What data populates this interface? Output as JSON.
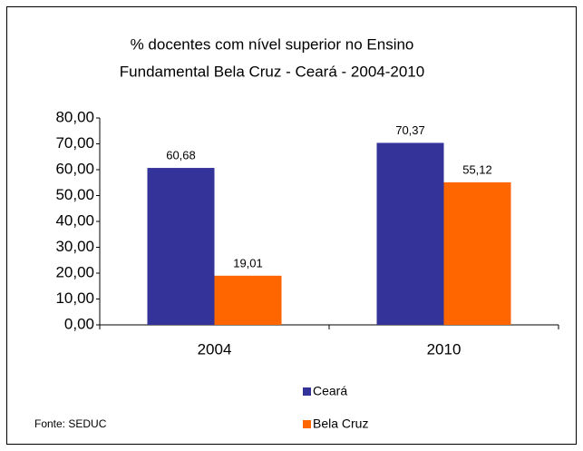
{
  "chart_data": {
    "type": "bar",
    "title": [
      "% docentes com nível superior no Ensino",
      "Fundamental Bela Cruz - Ceará - 2004-2010"
    ],
    "categories": [
      "2004",
      "2010"
    ],
    "series": [
      {
        "name": "Ceará",
        "color": "#333399",
        "values": [
          60.68,
          70.37
        ],
        "value_labels": [
          "60,68",
          "70,37"
        ]
      },
      {
        "name": "Bela Cruz",
        "color": "#ff6600",
        "values": [
          19.01,
          55.12
        ],
        "value_labels": [
          "19,01",
          "55,12"
        ]
      }
    ],
    "ylim": [
      0,
      80
    ],
    "yticks": [
      {
        "value": 0,
        "label": "0,00"
      },
      {
        "value": 10,
        "label": "10,00"
      },
      {
        "value": 20,
        "label": "20,00"
      },
      {
        "value": 30,
        "label": "30,00"
      },
      {
        "value": 40,
        "label": "40,00"
      },
      {
        "value": 50,
        "label": "50,00"
      },
      {
        "value": 60,
        "label": "60,00"
      },
      {
        "value": 70,
        "label": "70,00"
      },
      {
        "value": 80,
        "label": "80,00"
      }
    ],
    "grid": false,
    "legend": "bottom",
    "source": "Fonte: SEDUC"
  }
}
